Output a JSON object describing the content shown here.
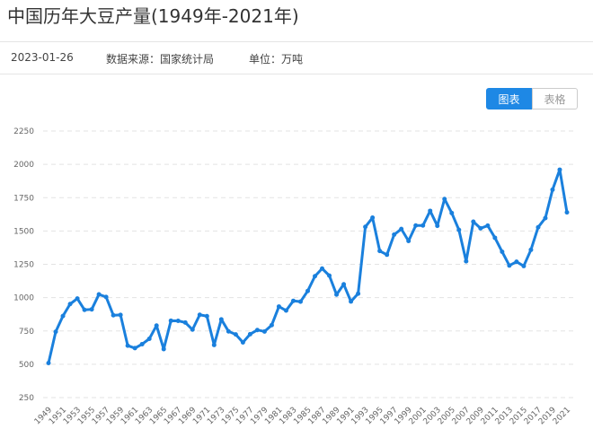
{
  "header": {
    "title": "中国历年大豆产量(1949年-2021年)",
    "date": "2023-01-26",
    "source": "数据来源：国家统计局",
    "unit": "单位：万吨"
  },
  "buttons": {
    "chart": "图表",
    "table": "表格"
  },
  "chart_data": {
    "type": "line",
    "color": "#1a80dd",
    "grid": true,
    "x": [
      1949,
      1950,
      1951,
      1952,
      1953,
      1954,
      1955,
      1956,
      1957,
      1958,
      1959,
      1960,
      1961,
      1962,
      1963,
      1964,
      1965,
      1966,
      1967,
      1968,
      1969,
      1970,
      1971,
      1972,
      1973,
      1974,
      1975,
      1976,
      1977,
      1978,
      1979,
      1980,
      1981,
      1982,
      1983,
      1984,
      1985,
      1986,
      1987,
      1988,
      1989,
      1990,
      1991,
      1992,
      1993,
      1994,
      1995,
      1996,
      1997,
      1998,
      1999,
      2000,
      2001,
      2002,
      2003,
      2004,
      2005,
      2006,
      2007,
      2008,
      2009,
      2010,
      2011,
      2012,
      2013,
      2014,
      2015,
      2016,
      2017,
      2018,
      2019,
      2020,
      2021
    ],
    "values": [
      509,
      744,
      862,
      952,
      993,
      908,
      912,
      1024,
      1005,
      868,
      870,
      640,
      621,
      651,
      691,
      790,
      614,
      827,
      826,
      813,
      760,
      871,
      861,
      645,
      837,
      747,
      724,
      664,
      726,
      757,
      746,
      794,
      933,
      903,
      976,
      970,
      1050,
      1161,
      1218,
      1165,
      1023,
      1100,
      971,
      1030,
      1531,
      1600,
      1350,
      1322,
      1473,
      1515,
      1425,
      1541,
      1541,
      1651,
      1539,
      1740,
      1635,
      1508,
      1273,
      1570,
      1520,
      1540,
      1449,
      1344,
      1241,
      1269,
      1237,
      1359,
      1528,
      1597,
      1810,
      1960,
      1640
    ],
    "xticks": [
      1949,
      1951,
      1953,
      1955,
      1957,
      1959,
      1961,
      1963,
      1965,
      1967,
      1969,
      1971,
      1973,
      1975,
      1977,
      1979,
      1981,
      1983,
      1985,
      1987,
      1989,
      1991,
      1993,
      1995,
      1997,
      1999,
      2001,
      2003,
      2005,
      2007,
      2009,
      2011,
      2013,
      2015,
      2017,
      2019,
      2021
    ],
    "ylim": [
      250,
      2250
    ],
    "yticks": [
      250,
      500,
      750,
      1000,
      1250,
      1500,
      1750,
      2000,
      2250
    ]
  }
}
